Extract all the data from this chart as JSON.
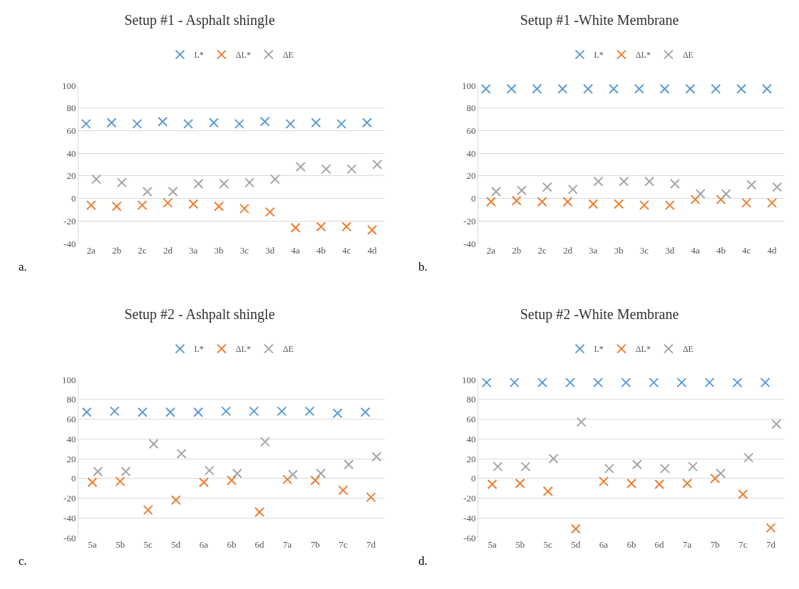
{
  "chart_data": [
    {
      "type": "scatter",
      "title": "Setup #1 - Asphalt shingle",
      "categories": [
        "2a",
        "2b",
        "2c",
        "2d",
        "3a",
        "3b",
        "3c",
        "3d",
        "4a",
        "4b",
        "4c",
        "4d"
      ],
      "series": [
        {
          "name": "L*",
          "color": "#5b9bd5",
          "values": [
            66,
            67,
            66,
            68,
            66,
            67,
            66,
            68,
            66,
            67,
            66,
            67
          ]
        },
        {
          "name": "ΔL*",
          "color": "#ed7d31",
          "values": [
            -6,
            -7,
            -6,
            -4,
            -5,
            -7,
            -9,
            -12,
            -26,
            -25,
            -25,
            -28
          ]
        },
        {
          "name": "ΔE",
          "color": "#a5a5a5",
          "values": [
            17,
            14,
            6,
            6,
            13,
            13,
            14,
            17,
            28,
            26,
            26,
            30
          ]
        }
      ],
      "ylim": [
        -40,
        100
      ],
      "yticks": [
        -40,
        -20,
        0,
        20,
        40,
        60,
        80,
        100
      ],
      "grid": "y",
      "legend": "top",
      "marker": "cross",
      "annotations": [
        "a."
      ]
    },
    {
      "type": "scatter",
      "title": "Setup #1 -White Membrane",
      "categories": [
        "2a",
        "2b",
        "2c",
        "2d",
        "3a",
        "3b",
        "3c",
        "3d",
        "4a",
        "4b",
        "4c",
        "4d"
      ],
      "series": [
        {
          "name": "L*",
          "color": "#5b9bd5",
          "values": [
            97,
            97,
            97,
            97,
            97,
            97,
            97,
            97,
            97,
            97,
            97,
            97
          ]
        },
        {
          "name": "ΔL*",
          "color": "#ed7d31",
          "values": [
            -3,
            -2,
            -3,
            -3,
            -5,
            -5,
            -6,
            -6,
            -1,
            -1,
            -4,
            -4
          ]
        },
        {
          "name": "ΔE",
          "color": "#a5a5a5",
          "values": [
            6,
            7,
            10,
            8,
            15,
            15,
            15,
            13,
            4,
            4,
            12,
            10
          ]
        }
      ],
      "ylim": [
        -40,
        100
      ],
      "yticks": [
        -40,
        -20,
        0,
        20,
        40,
        60,
        80,
        100
      ],
      "grid": "y",
      "legend": "top",
      "marker": "cross",
      "annotations": [
        "b."
      ]
    },
    {
      "type": "scatter",
      "title": "Setup #2 - Ashpalt shingle",
      "categories": [
        "5a",
        "5b",
        "5c",
        "5d",
        "6a",
        "6b",
        "6d",
        "7a",
        "7b",
        "7c",
        "7d"
      ],
      "series": [
        {
          "name": "L*",
          "color": "#5b9bd5",
          "values": [
            67,
            68,
            67,
            67,
            67,
            68,
            68,
            68,
            68,
            66,
            67
          ]
        },
        {
          "name": "ΔL*",
          "color": "#ed7d31",
          "values": [
            -4,
            -3,
            -32,
            -22,
            -4,
            -2,
            -34,
            -1,
            -2,
            -12,
            -19
          ]
        },
        {
          "name": "ΔE",
          "color": "#a5a5a5",
          "values": [
            7,
            7,
            35,
            25,
            8,
            5,
            37,
            4,
            5,
            14,
            22
          ]
        }
      ],
      "ylim": [
        -60,
        100
      ],
      "yticks": [
        -60,
        -40,
        -20,
        0,
        20,
        40,
        60,
        80,
        100
      ],
      "grid": "y",
      "legend": "top",
      "marker": "cross",
      "annotations": [
        "c."
      ]
    },
    {
      "type": "scatter",
      "title": "Setup #2 -White Membrane",
      "categories": [
        "5a",
        "5b",
        "5c",
        "5d",
        "6a",
        "6b",
        "6d",
        "7a",
        "7b",
        "7c",
        "7d"
      ],
      "series": [
        {
          "name": "L*",
          "color": "#5b9bd5",
          "values": [
            97,
            97,
            97,
            97,
            97,
            97,
            97,
            97,
            97,
            97,
            97
          ]
        },
        {
          "name": "ΔL*",
          "color": "#ed7d31",
          "values": [
            -6,
            -5,
            -13,
            -51,
            -3,
            -5,
            -6,
            -5,
            0,
            -16,
            -50
          ]
        },
        {
          "name": "ΔE",
          "color": "#a5a5a5",
          "values": [
            12,
            12,
            20,
            57,
            10,
            14,
            10,
            12,
            5,
            21,
            55
          ]
        }
      ],
      "ylim": [
        -60,
        100
      ],
      "yticks": [
        -60,
        -40,
        -20,
        0,
        20,
        40,
        60,
        80,
        100
      ],
      "grid": "y",
      "legend": "top",
      "marker": "cross",
      "annotations": [
        "d."
      ]
    }
  ]
}
